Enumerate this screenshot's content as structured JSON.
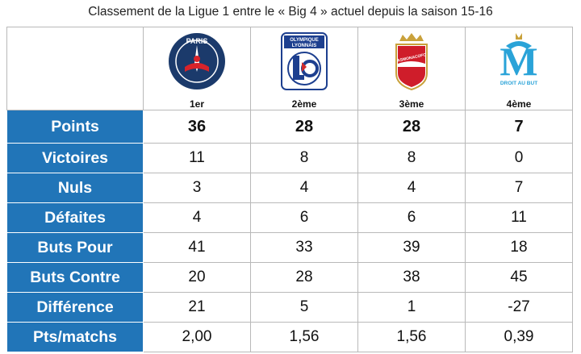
{
  "title": "Classement de la Ligue 1 entre le « Big 4 » actuel depuis la saison 15-16",
  "clubs": [
    {
      "rank": "1er",
      "logo": "psg-crest-icon",
      "logo_text": "PARIS"
    },
    {
      "rank": "2ème",
      "logo": "ol-crest-icon",
      "logo_text": "OLYMPIQUE LYONNAIS"
    },
    {
      "rank": "3ème",
      "logo": "monaco-crest-icon",
      "logo_text": "ASMONACOFC"
    },
    {
      "rank": "4ème",
      "logo": "om-crest-icon",
      "logo_text": "DROIT AU BUT"
    }
  ],
  "rows": [
    {
      "label": "Points",
      "values": [
        "36",
        "28",
        "28",
        "7"
      ]
    },
    {
      "label": "Victoires",
      "values": [
        "11",
        "8",
        "8",
        "0"
      ]
    },
    {
      "label": "Nuls",
      "values": [
        "3",
        "4",
        "4",
        "7"
      ]
    },
    {
      "label": "Défaites",
      "values": [
        "4",
        "6",
        "6",
        "11"
      ]
    },
    {
      "label": "Buts Pour",
      "values": [
        "41",
        "33",
        "39",
        "18"
      ]
    },
    {
      "label": "Buts Contre",
      "values": [
        "20",
        "28",
        "38",
        "45"
      ]
    },
    {
      "label": "Différence",
      "values": [
        "21",
        "5",
        "1",
        "-27"
      ]
    },
    {
      "label": "Pts/matchs",
      "values": [
        "2,00",
        "1,56",
        "1,56",
        "0,39"
      ]
    }
  ],
  "colors": {
    "label_bg": "#2175b8",
    "psg_blue": "#1b3a6b",
    "psg_red": "#d8232a",
    "ol_blue": "#1d3f8f",
    "monaco_red": "#cf1d2a",
    "om_blue": "#2aa3d8"
  }
}
